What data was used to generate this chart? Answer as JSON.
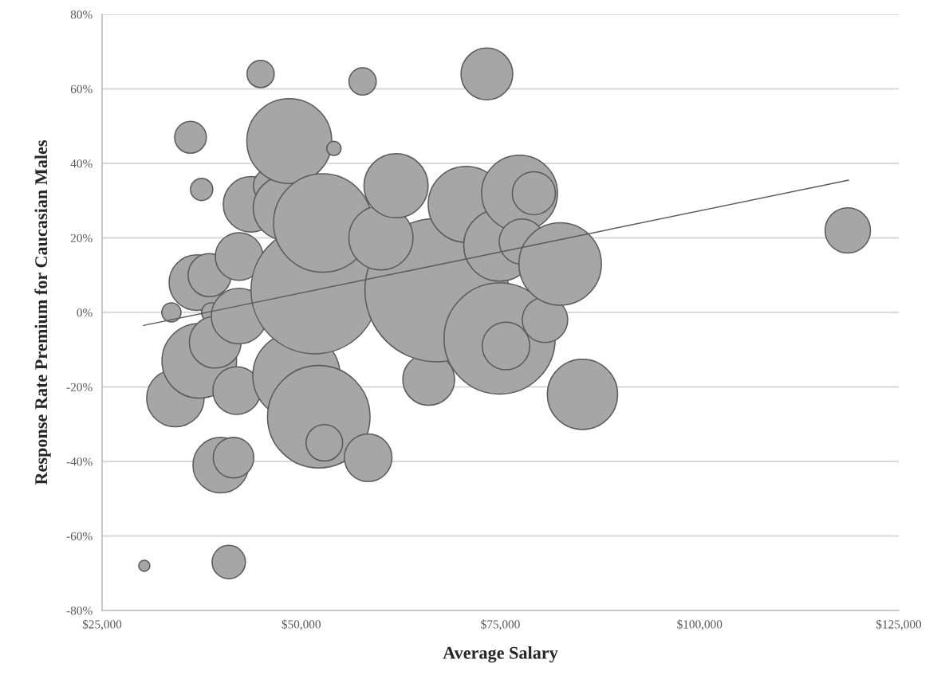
{
  "chart_data": {
    "type": "bubble",
    "xlabel": "Average Salary",
    "ylabel": "Response Rate Premium for Caucasian Males",
    "series": [
      {
        "color": "#a6a6a6",
        "x": [
          30300,
          33700,
          34200,
          36100,
          36900,
          37200,
          37500,
          38500,
          38700,
          39200,
          39900,
          40900,
          41500,
          41900,
          42200,
          42200,
          43700,
          44900,
          46200,
          48000,
          48500,
          49400,
          51700,
          52200,
          52700,
          52900,
          54100,
          57700,
          58400,
          66000,
          67000,
          60000,
          61900,
          70700,
          73300,
          74900,
          74900,
          75700,
          77400,
          77700,
          79200,
          80600,
          82500,
          85300,
          118600
        ],
        "values": [
          -68,
          0,
          -23,
          47,
          8,
          -13,
          33,
          10,
          0,
          -8,
          -41,
          -67,
          -39,
          -21,
          15,
          -1,
          29,
          64,
          34,
          28,
          46,
          -17,
          6,
          -28,
          24,
          -35,
          44,
          62,
          -39,
          -18,
          6,
          20,
          34,
          29,
          64,
          -7,
          18,
          -9,
          32,
          19,
          32,
          -2,
          13,
          -22,
          22
        ],
        "sizes": [
          0.006,
          0.018,
          0.16,
          0.049,
          0.15,
          0.27,
          0.024,
          0.09,
          0.018,
          0.13,
          0.15,
          0.054,
          0.08,
          0.11,
          0.11,
          0.15,
          0.15,
          0.036,
          0.06,
          0.2,
          0.35,
          0.37,
          0.79,
          0.51,
          0.47,
          0.065,
          0.01,
          0.036,
          0.11,
          0.13,
          1.0,
          0.2,
          0.2,
          0.28,
          0.13,
          0.6,
          0.25,
          0.11,
          0.28,
          0.1,
          0.09,
          0.1,
          0.33,
          0.24,
          0.1
        ]
      },
      {
        "type": "line",
        "color": "#595959",
        "x": [
          30200,
          118700
        ],
        "values": [
          -3.5,
          35.5
        ]
      }
    ],
    "xlim": [
      25000,
      125000
    ],
    "ylim": [
      -80,
      80
    ],
    "xticks": [
      {
        "value": 25000,
        "label": "$25,000"
      },
      {
        "value": 50000,
        "label": "$50,000"
      },
      {
        "value": 75000,
        "label": "$75,000"
      },
      {
        "value": 100000,
        "label": "$100,000"
      },
      {
        "value": 125000,
        "label": "$125,000"
      }
    ],
    "yticks": [
      {
        "value": -80,
        "label": "-80%"
      },
      {
        "value": -60,
        "label": "-60%"
      },
      {
        "value": -40,
        "label": "-40%"
      },
      {
        "value": -20,
        "label": "-20%"
      },
      {
        "value": 0,
        "label": "0%"
      },
      {
        "value": 20,
        "label": "20%"
      },
      {
        "value": 40,
        "label": "40%"
      },
      {
        "value": 60,
        "label": "60%"
      },
      {
        "value": 80,
        "label": "80%"
      }
    ],
    "grid": "y",
    "line_style": "solid"
  }
}
